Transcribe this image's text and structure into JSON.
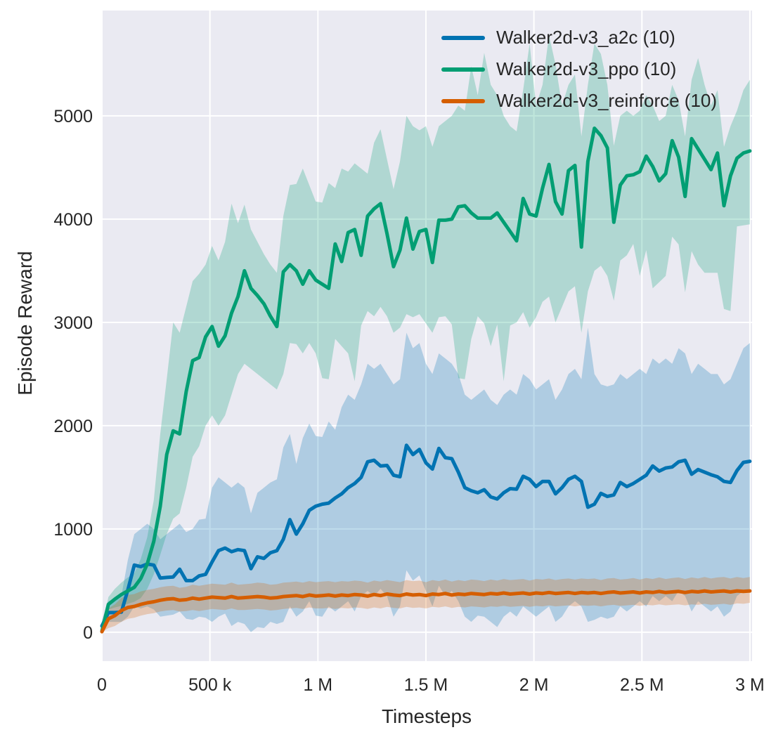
{
  "figure": {
    "background": "#ffffff",
    "axes_background": "#eaeaf2",
    "grid_color": "#ffffff",
    "text_color": "#262626"
  },
  "chart_data": {
    "type": "line",
    "title": "",
    "xlabel": "Timesteps",
    "ylabel": "Episode Reward",
    "grid": true,
    "legend_position": "upper right",
    "xlim": [
      0,
      3010000
    ],
    "ylim": [
      -280,
      6020
    ],
    "xticks": [
      {
        "value": 0,
        "label": "0"
      },
      {
        "value": 500000,
        "label": "500 k"
      },
      {
        "value": 1000000,
        "label": "1 M"
      },
      {
        "value": 1500000,
        "label": "1.5 M"
      },
      {
        "value": 2000000,
        "label": "2 M"
      },
      {
        "value": 2500000,
        "label": "2.5 M"
      },
      {
        "value": 3000000,
        "label": "3 M"
      }
    ],
    "yticks": [
      {
        "value": 0,
        "label": "0"
      },
      {
        "value": 1000,
        "label": "1000"
      },
      {
        "value": 2000,
        "label": "2000"
      },
      {
        "value": 3000,
        "label": "3000"
      },
      {
        "value": 4000,
        "label": "4000"
      },
      {
        "value": 5000,
        "label": "5000"
      }
    ],
    "x_unit": "timesteps",
    "x": [
      0,
      30000,
      60000,
      90000,
      120000,
      150000,
      180000,
      210000,
      240000,
      270000,
      300000,
      330000,
      360000,
      390000,
      420000,
      450000,
      480000,
      510000,
      540000,
      570000,
      600000,
      630000,
      660000,
      690000,
      720000,
      750000,
      780000,
      810000,
      840000,
      870000,
      900000,
      930000,
      960000,
      990000,
      1020000,
      1050000,
      1080000,
      1110000,
      1140000,
      1170000,
      1200000,
      1230000,
      1260000,
      1290000,
      1320000,
      1350000,
      1380000,
      1410000,
      1440000,
      1470000,
      1500000,
      1530000,
      1560000,
      1590000,
      1620000,
      1650000,
      1680000,
      1710000,
      1740000,
      1770000,
      1800000,
      1830000,
      1860000,
      1890000,
      1920000,
      1950000,
      1980000,
      2010000,
      2040000,
      2070000,
      2100000,
      2130000,
      2160000,
      2190000,
      2220000,
      2250000,
      2280000,
      2310000,
      2340000,
      2370000,
      2400000,
      2430000,
      2460000,
      2490000,
      2520000,
      2550000,
      2580000,
      2610000,
      2640000,
      2670000,
      2700000,
      2730000,
      2760000,
      2790000,
      2820000,
      2850000,
      2880000,
      2910000,
      2940000,
      2970000,
      3000000
    ],
    "series": [
      {
        "name": "Walker2d-v3_a2c (10)",
        "color": "#0173b2",
        "mean": [
          60,
          190,
          190,
          195,
          410,
          650,
          635,
          660,
          650,
          525,
          530,
          535,
          610,
          500,
          500,
          545,
          560,
          680,
          790,
          815,
          780,
          800,
          790,
          615,
          730,
          715,
          770,
          790,
          900,
          1090,
          950,
          1050,
          1180,
          1220,
          1240,
          1250,
          1300,
          1340,
          1400,
          1440,
          1500,
          1650,
          1665,
          1610,
          1615,
          1520,
          1505,
          1810,
          1720,
          1770,
          1640,
          1580,
          1780,
          1690,
          1680,
          1550,
          1400,
          1370,
          1350,
          1380,
          1310,
          1290,
          1350,
          1390,
          1385,
          1510,
          1480,
          1410,
          1460,
          1460,
          1340,
          1400,
          1480,
          1510,
          1460,
          1210,
          1240,
          1345,
          1315,
          1330,
          1450,
          1410,
          1440,
          1480,
          1520,
          1610,
          1560,
          1590,
          1600,
          1650,
          1665,
          1530,
          1575,
          1550,
          1525,
          1505,
          1460,
          1450,
          1565,
          1645,
          1655
        ],
        "band_lower": [
          0,
          100,
          100,
          100,
          150,
          250,
          230,
          250,
          220,
          150,
          160,
          170,
          200,
          130,
          120,
          150,
          140,
          100,
          150,
          180,
          60,
          100,
          80,
          0,
          50,
          40,
          100,
          80,
          100,
          250,
          150,
          200,
          300,
          160,
          150,
          250,
          200,
          250,
          300,
          200,
          350,
          400,
          350,
          420,
          350,
          150,
          250,
          600,
          500,
          550,
          400,
          250,
          450,
          350,
          400,
          300,
          150,
          100,
          160,
          150,
          100,
          50,
          150,
          200,
          150,
          250,
          200,
          150,
          200,
          250,
          100,
          150,
          250,
          300,
          250,
          100,
          120,
          150,
          130,
          150,
          250,
          200,
          250,
          300,
          250,
          350,
          300,
          350,
          300,
          400,
          350,
          200,
          300,
          250,
          200,
          250,
          150,
          200,
          350,
          400,
          420
        ],
        "band_upper": [
          120,
          300,
          320,
          350,
          700,
          950,
          1000,
          1050,
          1000,
          900,
          950,
          1000,
          1050,
          970,
          1000,
          1090,
          1100,
          1400,
          1500,
          1450,
          1400,
          1450,
          1400,
          1150,
          1350,
          1400,
          1450,
          1480,
          1790,
          1920,
          1630,
          1880,
          2020,
          1900,
          1890,
          2040,
          1960,
          2180,
          2300,
          2250,
          2400,
          2600,
          2550,
          2600,
          2500,
          2400,
          2450,
          2900,
          2750,
          2800,
          2600,
          2500,
          2700,
          2650,
          2600,
          2500,
          2300,
          2250,
          2300,
          2350,
          2250,
          2200,
          2300,
          2350,
          2300,
          2500,
          2450,
          2350,
          2400,
          2450,
          2250,
          2350,
          2500,
          2550,
          2450,
          2950,
          2500,
          2400,
          2380,
          2400,
          2500,
          2450,
          2500,
          2550,
          2500,
          2650,
          2600,
          2650,
          2600,
          2750,
          2700,
          2500,
          2600,
          2550,
          2500,
          2500,
          2400,
          2450,
          2600,
          2750,
          2800
        ]
      },
      {
        "name": "Walker2d-v3_ppo (10)",
        "color": "#029e73",
        "mean": [
          10,
          270,
          320,
          365,
          400,
          435,
          520,
          660,
          880,
          1220,
          1720,
          1950,
          1920,
          2330,
          2630,
          2660,
          2860,
          2960,
          2770,
          2870,
          3090,
          3250,
          3500,
          3330,
          3260,
          3180,
          3060,
          2960,
          3490,
          3560,
          3500,
          3370,
          3500,
          3410,
          3370,
          3330,
          3760,
          3590,
          3870,
          3900,
          3650,
          4030,
          4100,
          4150,
          3860,
          3540,
          3700,
          4010,
          3710,
          3880,
          3900,
          3580,
          3990,
          3990,
          4000,
          4120,
          4130,
          4060,
          4010,
          4010,
          4010,
          4060,
          3970,
          3880,
          3790,
          4200,
          4050,
          4030,
          4300,
          4530,
          4170,
          4050,
          4470,
          4520,
          3730,
          4560,
          4880,
          4810,
          4690,
          3970,
          4330,
          4420,
          4430,
          4460,
          4610,
          4510,
          4370,
          4440,
          4760,
          4600,
          4220,
          4780,
          4680,
          4580,
          4480,
          4640,
          4130,
          4420,
          4590,
          4640,
          4660
        ],
        "band_lower": [
          0,
          220,
          240,
          255,
          275,
          295,
          330,
          420,
          560,
          750,
          950,
          1100,
          1150,
          1400,
          1700,
          1800,
          2000,
          2100,
          2000,
          2100,
          2300,
          2500,
          2600,
          2550,
          2500,
          2450,
          2400,
          2350,
          2500,
          2800,
          2790,
          2700,
          2800,
          2700,
          2460,
          2450,
          2840,
          2770,
          2700,
          2430,
          2970,
          3110,
          3060,
          3150,
          3060,
          2900,
          2950,
          3080,
          3050,
          3080,
          2990,
          2900,
          3050,
          3060,
          2980,
          2460,
          2450,
          2840,
          3060,
          2990,
          2770,
          2980,
          2430,
          2970,
          3000,
          3100,
          2950,
          3050,
          3200,
          3250,
          3000,
          3150,
          3300,
          3350,
          2900,
          3300,
          3500,
          3550,
          3450,
          3210,
          3600,
          3650,
          3760,
          3450,
          3700,
          3330,
          3390,
          3450,
          3830,
          3755,
          3290,
          3690,
          3560,
          3480,
          3480,
          3480,
          3130,
          3110,
          3930,
          3940,
          3950
        ],
        "band_upper": [
          40,
          340,
          420,
          480,
          530,
          570,
          710,
          920,
          1280,
          1920,
          2450,
          3000,
          2900,
          3150,
          3400,
          3470,
          3560,
          3740,
          3600,
          3780,
          4150,
          3960,
          4140,
          3900,
          3780,
          3660,
          3560,
          3480,
          4030,
          4330,
          4340,
          4490,
          4330,
          4170,
          4160,
          4350,
          4300,
          4490,
          4460,
          4540,
          4490,
          4440,
          4740,
          4870,
          4580,
          4290,
          4560,
          5000,
          4900,
          4860,
          4900,
          4700,
          4900,
          4950,
          5000,
          5100,
          5050,
          5480,
          5200,
          5610,
          5300,
          5200,
          5000,
          4900,
          4850,
          5250,
          5700,
          5100,
          5300,
          5780,
          5500,
          5100,
          5300,
          5400,
          4800,
          5300,
          5700,
          5600,
          5300,
          4710,
          5000,
          5050,
          5000,
          5050,
          5200,
          5100,
          4950,
          5000,
          5300,
          5150,
          4800,
          5350,
          5560,
          5300,
          5100,
          5250,
          4700,
          4900,
          5050,
          5250,
          5350
        ]
      },
      {
        "name": "Walker2d-v3_reinforce (10)",
        "color": "#d55e00",
        "mean": [
          5,
          130,
          160,
          210,
          240,
          250,
          270,
          285,
          295,
          310,
          320,
          325,
          310,
          315,
          330,
          320,
          330,
          340,
          335,
          330,
          345,
          330,
          335,
          340,
          345,
          340,
          330,
          335,
          345,
          350,
          355,
          345,
          360,
          350,
          355,
          360,
          350,
          360,
          355,
          365,
          360,
          350,
          365,
          355,
          370,
          360,
          355,
          370,
          360,
          365,
          355,
          370,
          365,
          375,
          360,
          370,
          365,
          375,
          370,
          365,
          375,
          370,
          380,
          370,
          375,
          380,
          370,
          380,
          375,
          385,
          375,
          380,
          385,
          375,
          385,
          380,
          385,
          375,
          385,
          390,
          380,
          385,
          390,
          380,
          390,
          385,
          395,
          385,
          390,
          395,
          385,
          395,
          390,
          400,
          390,
          395,
          400,
          390,
          400,
          395,
          400
        ],
        "band_lower": [
          0,
          40,
          60,
          100,
          130,
          140,
          160,
          175,
          185,
          200,
          210,
          215,
          200,
          205,
          215,
          205,
          215,
          225,
          220,
          215,
          230,
          215,
          215,
          220,
          225,
          220,
          210,
          215,
          225,
          230,
          235,
          225,
          240,
          230,
          230,
          235,
          225,
          235,
          230,
          240,
          235,
          225,
          240,
          230,
          245,
          235,
          230,
          245,
          235,
          240,
          230,
          245,
          240,
          250,
          235,
          245,
          240,
          250,
          245,
          240,
          250,
          245,
          255,
          245,
          250,
          255,
          245,
          255,
          250,
          260,
          250,
          255,
          260,
          250,
          260,
          255,
          260,
          250,
          260,
          265,
          255,
          260,
          265,
          255,
          265,
          260,
          270,
          260,
          265,
          270,
          260,
          270,
          265,
          275,
          265,
          270,
          275,
          265,
          280,
          275,
          285
        ],
        "band_upper": [
          15,
          230,
          270,
          330,
          360,
          370,
          395,
          410,
          420,
          435,
          445,
          450,
          430,
          440,
          460,
          450,
          460,
          470,
          465,
          460,
          480,
          460,
          465,
          470,
          480,
          475,
          460,
          465,
          480,
          485,
          490,
          480,
          495,
          485,
          490,
          495,
          485,
          495,
          490,
          500,
          495,
          480,
          500,
          490,
          505,
          495,
          485,
          505,
          495,
          500,
          485,
          505,
          495,
          510,
          490,
          505,
          495,
          510,
          505,
          495,
          510,
          500,
          515,
          505,
          510,
          515,
          500,
          515,
          510,
          520,
          505,
          515,
          520,
          510,
          520,
          515,
          520,
          505,
          520,
          525,
          510,
          515,
          525,
          510,
          525,
          515,
          530,
          515,
          525,
          530,
          515,
          530,
          520,
          535,
          520,
          530,
          535,
          520,
          535,
          525,
          535
        ]
      }
    ]
  }
}
